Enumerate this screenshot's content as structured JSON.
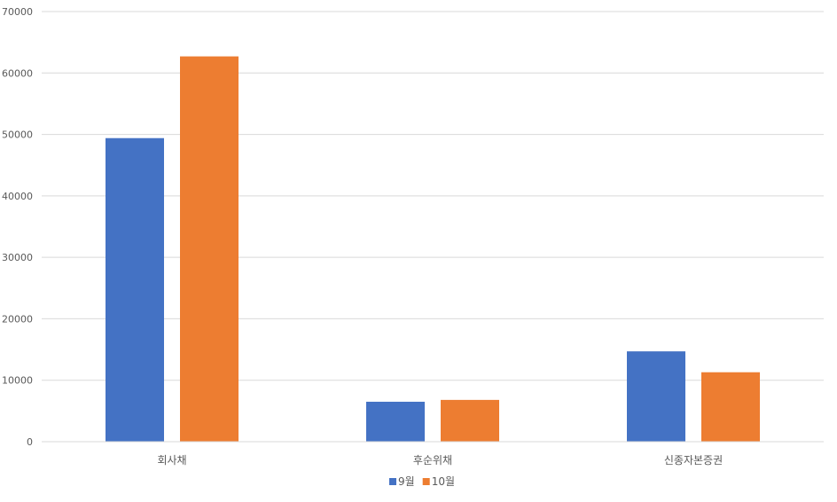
{
  "chart_data": {
    "type": "bar",
    "title": "",
    "xlabel": "",
    "ylabel": "",
    "categories": [
      "회사채",
      "후순위채",
      "신종자본증권"
    ],
    "series": [
      {
        "name": "9월",
        "color": "#4472c4",
        "values": [
          49400,
          6500,
          14700
        ]
      },
      {
        "name": "10월",
        "color": "#ed7d31",
        "values": [
          62700,
          6800,
          11300
        ]
      }
    ],
    "ylim": [
      0,
      70000
    ],
    "yticks": [
      0,
      10000,
      20000,
      30000,
      40000,
      50000,
      60000,
      70000
    ],
    "grid": true,
    "legend_position": "bottom"
  }
}
